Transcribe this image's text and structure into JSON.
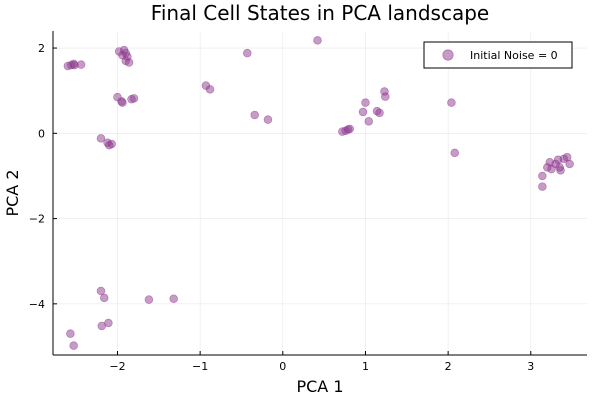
{
  "chart_data": {
    "type": "scatter",
    "title": "Final Cell States in PCA landscape",
    "xlabel": "PCA 1",
    "ylabel": "PCA 2",
    "xlim": [
      -2.78,
      3.68
    ],
    "ylim": [
      -5.2,
      2.4
    ],
    "xticks": [
      -2,
      -1,
      0,
      1,
      2,
      3
    ],
    "yticks": [
      2,
      0,
      -2,
      -4
    ],
    "xtick_labels": [
      "−2",
      "−1",
      "0",
      "1",
      "2",
      "3"
    ],
    "ytick_labels": [
      "2",
      "0",
      "−2",
      "−4"
    ],
    "grid": true,
    "legend": {
      "position": "top-right",
      "entries": [
        "Initial Noise = 0"
      ]
    },
    "marker_color": "#8e3a8e",
    "series": [
      {
        "name": "Initial Noise = 0",
        "points": [
          {
            "x": -2.6,
            "y": 1.58
          },
          {
            "x": -2.56,
            "y": 1.6
          },
          {
            "x": -2.53,
            "y": 1.63
          },
          {
            "x": -2.52,
            "y": 1.6
          },
          {
            "x": -2.44,
            "y": 1.61
          },
          {
            "x": -1.98,
            "y": 1.92
          },
          {
            "x": -1.94,
            "y": 1.83
          },
          {
            "x": -1.92,
            "y": 1.95
          },
          {
            "x": -1.9,
            "y": 1.88
          },
          {
            "x": -1.88,
            "y": 1.8
          },
          {
            "x": -1.9,
            "y": 1.7
          },
          {
            "x": -1.86,
            "y": 1.66
          },
          {
            "x": -2.0,
            "y": 0.85
          },
          {
            "x": -1.95,
            "y": 0.75
          },
          {
            "x": -1.94,
            "y": 0.72
          },
          {
            "x": -1.83,
            "y": 0.8
          },
          {
            "x": -1.8,
            "y": 0.82
          },
          {
            "x": -0.93,
            "y": 1.12
          },
          {
            "x": -0.88,
            "y": 1.03
          },
          {
            "x": -0.43,
            "y": 1.88
          },
          {
            "x": 0.42,
            "y": 2.18
          },
          {
            "x": -0.34,
            "y": 0.43
          },
          {
            "x": -0.18,
            "y": 0.32
          },
          {
            "x": -2.2,
            "y": -0.12
          },
          {
            "x": -2.12,
            "y": -0.22
          },
          {
            "x": -2.1,
            "y": -0.28
          },
          {
            "x": -2.07,
            "y": -0.25
          },
          {
            "x": 0.72,
            "y": 0.04
          },
          {
            "x": 0.76,
            "y": 0.06
          },
          {
            "x": 0.79,
            "y": 0.09
          },
          {
            "x": 0.81,
            "y": 0.1
          },
          {
            "x": 0.97,
            "y": 0.5
          },
          {
            "x": 1.0,
            "y": 0.72
          },
          {
            "x": 1.04,
            "y": 0.28
          },
          {
            "x": 1.14,
            "y": 0.52
          },
          {
            "x": 1.17,
            "y": 0.48
          },
          {
            "x": 1.23,
            "y": 0.98
          },
          {
            "x": 1.24,
            "y": 0.86
          },
          {
            "x": 2.04,
            "y": 0.72
          },
          {
            "x": 2.08,
            "y": -0.46
          },
          {
            "x": 3.14,
            "y": -1.0
          },
          {
            "x": 3.14,
            "y": -1.25
          },
          {
            "x": 3.2,
            "y": -0.8
          },
          {
            "x": 3.23,
            "y": -0.68
          },
          {
            "x": 3.25,
            "y": -0.84
          },
          {
            "x": 3.3,
            "y": -0.72
          },
          {
            "x": 3.33,
            "y": -0.62
          },
          {
            "x": 3.35,
            "y": -0.8
          },
          {
            "x": 3.36,
            "y": -0.87
          },
          {
            "x": 3.4,
            "y": -0.6
          },
          {
            "x": 3.44,
            "y": -0.56
          },
          {
            "x": 3.47,
            "y": -0.72
          },
          {
            "x": -2.2,
            "y": -3.7
          },
          {
            "x": -2.16,
            "y": -3.86
          },
          {
            "x": -1.62,
            "y": -3.9
          },
          {
            "x": -1.32,
            "y": -3.88
          },
          {
            "x": -2.19,
            "y": -4.52
          },
          {
            "x": -2.11,
            "y": -4.45
          },
          {
            "x": -2.57,
            "y": -4.7
          },
          {
            "x": -2.53,
            "y": -4.98
          }
        ]
      }
    ]
  }
}
